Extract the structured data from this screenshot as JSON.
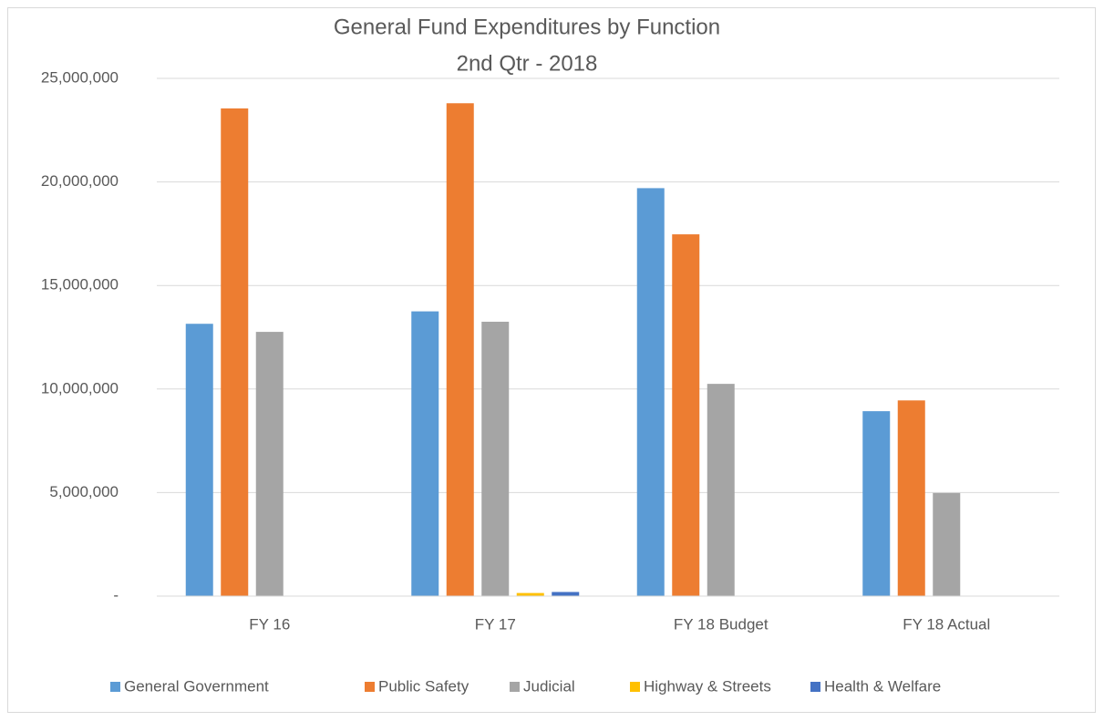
{
  "chart_data": {
    "type": "bar",
    "title": "General Fund Expenditures by Function",
    "subtitle": "2nd Qtr - 2018",
    "categories": [
      "FY 16",
      "FY 17",
      "FY 18 Budget",
      "FY 18 Actual"
    ],
    "series": [
      {
        "name": "General Government",
        "color": "#5b9bd5",
        "values": [
          13150000,
          13750000,
          19700000,
          8930000
        ]
      },
      {
        "name": "Public Safety",
        "color": "#ed7d31",
        "values": [
          23550000,
          23800000,
          17470000,
          9450000
        ]
      },
      {
        "name": "Judicial",
        "color": "#a5a5a5",
        "values": [
          12760000,
          13250000,
          10250000,
          4980000
        ]
      },
      {
        "name": "Highway & Streets",
        "color": "#ffc000",
        "values": [
          0,
          150000,
          0,
          0
        ]
      },
      {
        "name": "Health & Welfare",
        "color": "#4472c4",
        "values": [
          0,
          200000,
          0,
          0
        ]
      }
    ],
    "ylim": [
      0,
      25000000
    ],
    "yticks": [
      {
        "value": 0,
        "label": "-"
      },
      {
        "value": 5000000,
        "label": "5,000,000"
      },
      {
        "value": 10000000,
        "label": "10,000,000"
      },
      {
        "value": 15000000,
        "label": "15,000,000"
      },
      {
        "value": 20000000,
        "label": "20,000,000"
      },
      {
        "value": 25000000,
        "label": "25,000,000"
      }
    ],
    "grid": true,
    "legend": "bottom"
  }
}
